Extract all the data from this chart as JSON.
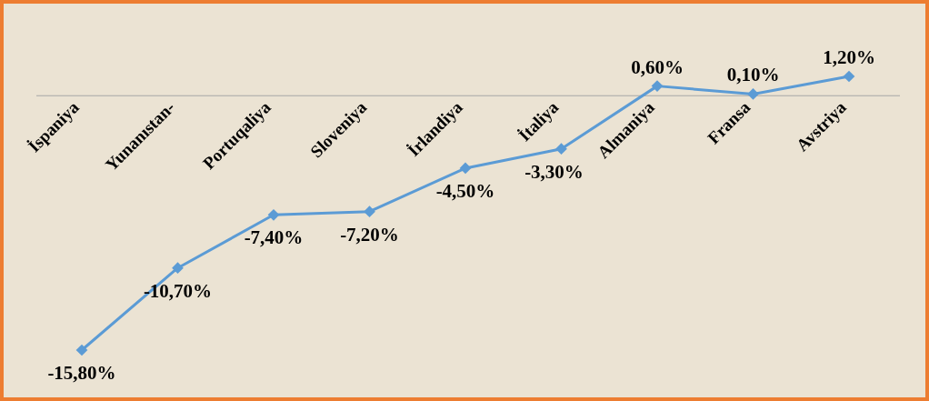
{
  "chart_data": {
    "type": "line",
    "categories": [
      "İspaniya",
      "Yunanıstan-",
      "Portuqaliya",
      "Sloveniya",
      "İrlandiya",
      "İtaliya",
      "Almaniya",
      "Fransa",
      "Avstriya"
    ],
    "values": [
      -15.8,
      -10.7,
      -7.4,
      -7.2,
      -4.5,
      -3.3,
      0.6,
      0.1,
      1.2
    ],
    "value_labels": [
      "-15,80%",
      "-10,70%",
      "-7,40%",
      "-7,20%",
      "-4,50%",
      "-3,30%",
      "0,60%",
      "0,10%",
      "1,20%"
    ],
    "color": "#5b9bd5",
    "marker": "diamond",
    "line_style": "solid"
  }
}
